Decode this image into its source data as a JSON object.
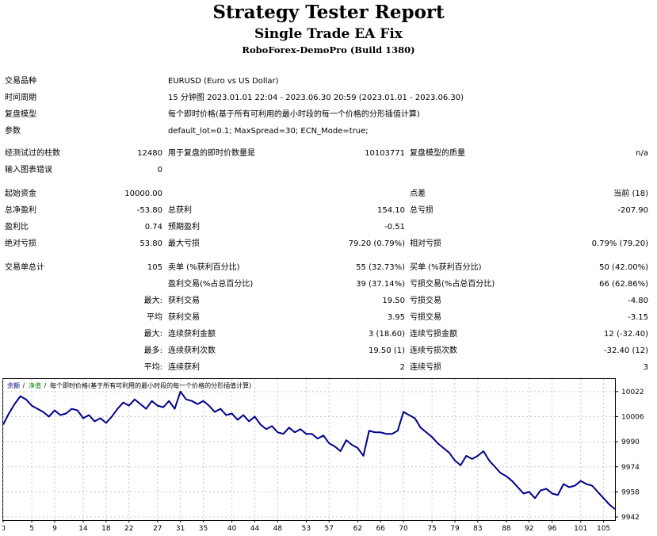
{
  "header": {
    "title": "Strategy Tester Report",
    "subtitle": "Single Trade EA Fix",
    "build": "RoboForex-DemoPro (Build 1380)"
  },
  "info": {
    "symbol_label": "交易品种",
    "symbol_value": "EURUSD (Euro vs US Dollar)",
    "period_label": "时间周期",
    "period_value": "15 分钟图 2023.01.01 22:04 - 2023.06.30 20:59 (2023.01.01 - 2023.06.30)",
    "model_label": "复盘模型",
    "model_value": "每个即时价格(基于所有可利用的最小时段的每一个价格的分形插值计算)",
    "params_label": "参数",
    "params_value": "default_lot=0.1; MaxSpread=30; ECN_Mode=true;"
  },
  "bars": {
    "bars_label": "经测试过的柱数",
    "bars_value": "12480",
    "ticks_label": "用于复盘的即时价数量是",
    "ticks_value": "10103771",
    "quality_label": "复盘模型的质量",
    "quality_value": "n/a",
    "errors_label": "输入图表错误",
    "errors_value": "0"
  },
  "stats": {
    "deposit_label": "起始资金",
    "deposit_value": "10000.00",
    "spread_label": "点差",
    "spread_value": "当前 (18)",
    "net_label": "总净盈利",
    "net_value": "-53.80",
    "gross_profit_label": "总获利",
    "gross_profit_value": "154.10",
    "gross_loss_label": "总亏损",
    "gross_loss_value": "-207.90",
    "pf_label": "盈利比",
    "pf_value": "0.74",
    "payoff_label": "预期盈利",
    "payoff_value": "-0.51",
    "abs_dd_label": "绝对亏损",
    "abs_dd_value": "53.80",
    "max_dd_label": "最大亏损",
    "max_dd_value": "79.20 (0.79%)",
    "rel_dd_label": "相对亏损",
    "rel_dd_value": "0.79% (79.20)"
  },
  "trades": {
    "total_label": "交易单总计",
    "total_value": "105",
    "short_label": "卖单 (%获利百分比)",
    "short_value": "55 (32.73%)",
    "long_label": "买单 (%获利百分比)",
    "long_value": "50 (42.00%)",
    "win_label": "盈利交易(%占总百分比)",
    "win_value": "39 (37.14%)",
    "loss_label": "亏损交易(%占总百分比)",
    "loss_value": "66 (62.86%)",
    "largest_prefix": "最大:",
    "largest_win_label": "获利交易",
    "largest_win_value": "19.50",
    "largest_loss_label": "亏损交易",
    "largest_loss_value": "-4.80",
    "avg_prefix": "平均",
    "avg_win_label": "获利交易",
    "avg_win_value": "3.95",
    "avg_loss_label": "亏损交易",
    "avg_loss_value": "-3.15",
    "max_prefix": "最大:",
    "max_consec_win_label": "连续获利金额",
    "max_consec_win_value": "3 (18.60)",
    "max_consec_loss_label": "连续亏损金额",
    "max_consec_loss_value": "12 (-32.40)",
    "most_prefix": "最多:",
    "most_consec_win_label": "连续获利次数",
    "most_consec_win_value": "19.50 (1)",
    "most_consec_loss_label": "连续亏损次数",
    "most_consec_loss_value": "-32.40 (12)",
    "avg2_prefix": "平均:",
    "avg_consec_win_label": "连续获利",
    "avg_consec_win_value": "2",
    "avg_consec_loss_label": "连续亏损",
    "avg_consec_loss_value": "3"
  },
  "chart_caption": {
    "balance": "余额",
    "sep1": " / ",
    "equity": "净值",
    "sep2": " / ",
    "rest": "每个即时价格(基于所有可利用的最小时段的每一个价格的分形插值计算)"
  },
  "chart_data": {
    "type": "line",
    "xlim": [
      0,
      107
    ],
    "ylim": [
      9940,
      10030
    ],
    "x_ticks": [
      "0",
      "5",
      "9",
      "14",
      "18",
      "22",
      "27",
      "31",
      "35",
      "40",
      "44",
      "48",
      "53",
      "57",
      "62",
      "66",
      "70",
      "75",
      "79",
      "83",
      "88",
      "92",
      "96",
      "101",
      "105"
    ],
    "y_ticks": [
      "10022",
      "10006",
      "9990",
      "9974",
      "9958",
      "9942"
    ],
    "colors": {
      "balance": "#00008b",
      "equity": "#008000",
      "grid": "#c8c8c8",
      "border": "#000000"
    },
    "series": [
      {
        "name": "余额",
        "values": [
          10001,
          10008,
          10014,
          10019,
          10017,
          10013,
          10011,
          10009,
          10006,
          10010,
          10007,
          10008,
          10011,
          10010,
          10005,
          10007,
          10003,
          10005,
          10002,
          10006,
          10011,
          10015,
          10013,
          10017,
          10014,
          10011,
          10016,
          10013,
          10012,
          10016,
          10011,
          10022,
          10017,
          10016,
          10014,
          10016,
          10013,
          10009,
          10011,
          10007,
          10008,
          10004,
          10007,
          10003,
          10006,
          10001,
          9998,
          10000,
          9996,
          9995,
          9999,
          9996,
          9998,
          9995,
          9995,
          9992,
          9994,
          9989,
          9987,
          9984,
          9991,
          9988,
          9986,
          9981,
          9997,
          9996,
          9996,
          9995,
          9995,
          9997,
          10009,
          10007,
          10005,
          9999,
          9996,
          9993,
          9989,
          9986,
          9983,
          9978,
          9975,
          9981,
          9979,
          9981,
          9984,
          9978,
          9974,
          9970,
          9968,
          9965,
          9961,
          9957,
          9958,
          9954,
          9959,
          9960,
          9957,
          9956,
          9963,
          9961,
          9962,
          9965,
          9963,
          9962,
          9958,
          9954,
          9950,
          9947
        ]
      },
      {
        "name": "净值",
        "values": [
          10001,
          10008,
          10014,
          10019,
          10017,
          10013,
          10011,
          10009,
          10006,
          10010,
          10007,
          10008,
          10011,
          10010,
          10005,
          10007,
          10003,
          10005,
          10002,
          10006,
          10011,
          10015,
          10013,
          10017,
          10014,
          10011,
          10016,
          10013,
          10012,
          10016,
          10011,
          10022,
          10017,
          10016,
          10014,
          10016,
          10013,
          10009,
          10011,
          10007,
          10008,
          10004,
          10007,
          10003,
          10006,
          10001,
          9998,
          10000,
          9996,
          9995,
          9999,
          9996,
          9998,
          9995,
          9995,
          9992,
          9994,
          9989,
          9987,
          9984,
          9991,
          9988,
          9986,
          9981,
          9997,
          9996,
          9996,
          9995,
          9995,
          9997,
          10009,
          10007,
          10005,
          9999,
          9996,
          9993,
          9989,
          9986,
          9983,
          9978,
          9975,
          9981,
          9979,
          9981,
          9984,
          9978,
          9974,
          9970,
          9968,
          9965,
          9961,
          9957,
          9958,
          9954,
          9959,
          9960,
          9957,
          9956,
          9963,
          9961,
          9962,
          9965,
          9963,
          9962,
          9958,
          9954,
          9950,
          9947
        ]
      }
    ]
  }
}
